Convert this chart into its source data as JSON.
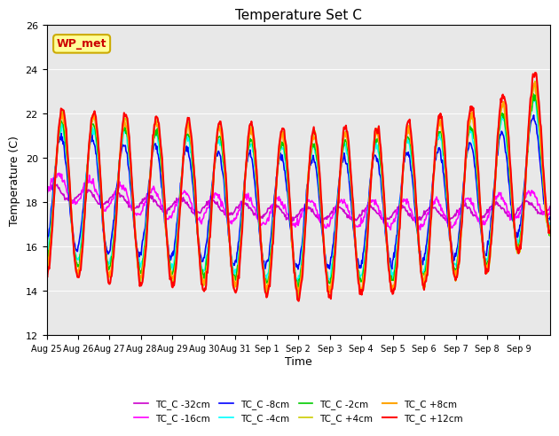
{
  "title": "Temperature Set C",
  "xlabel": "Time",
  "ylabel": "Temperature (C)",
  "ylim": [
    12,
    26
  ],
  "n_days": 16,
  "xtick_labels": [
    "Aug 25",
    "Aug 26",
    "Aug 27",
    "Aug 28",
    "Aug 29",
    "Aug 30",
    "Aug 31",
    "Sep 1",
    "Sep 2",
    "Sep 3",
    "Sep 4",
    "Sep 5",
    "Sep 6",
    "Sep 7",
    "Sep 8",
    "Sep 9"
  ],
  "series_names": [
    "TC_C -32cm",
    "TC_C -16cm",
    "TC_C -8cm",
    "TC_C -4cm",
    "TC_C -2cm",
    "TC_C +4cm",
    "TC_C +8cm",
    "TC_C +12cm"
  ],
  "series_colors": [
    "#CC00CC",
    "#FF00FF",
    "#0000FF",
    "#00FFFF",
    "#00CC00",
    "#CCCC00",
    "#FFA500",
    "#FF0000"
  ],
  "series_lw": [
    1.2,
    1.2,
    1.2,
    1.2,
    1.2,
    1.2,
    1.5,
    1.5
  ],
  "annotation_text": "WP_met",
  "annotation_color": "#CC0000",
  "annotation_bg": "#FFFF99",
  "annotation_border": "#CCAA00",
  "yticks": [
    12,
    14,
    16,
    18,
    20,
    22,
    24,
    26
  ]
}
